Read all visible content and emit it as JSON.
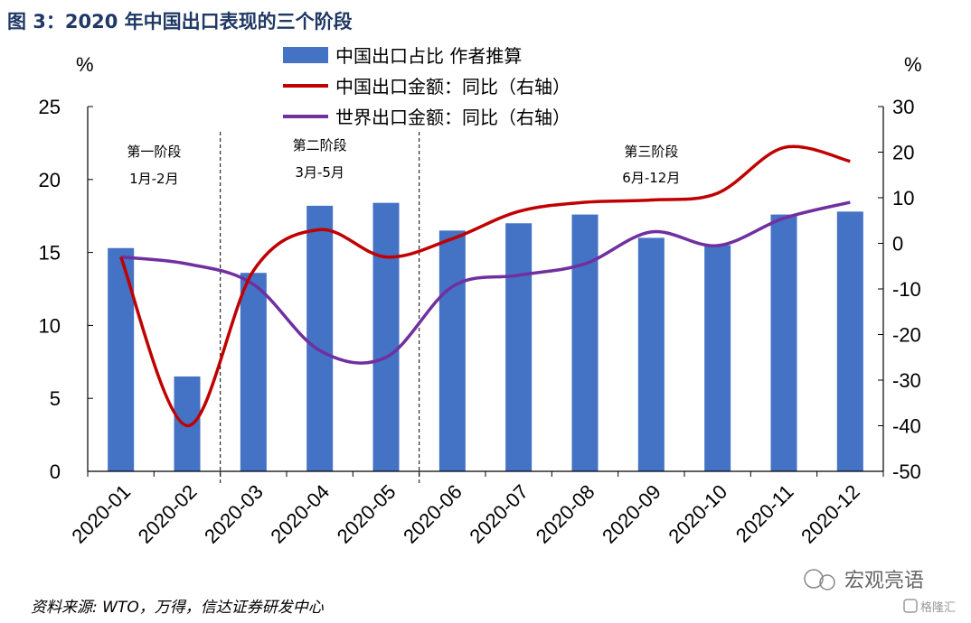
{
  "figure_title": "图 3：2020 年中国出口表现的三个阶段",
  "source_note": "资料来源: WTO，万得，信达证券研发中心",
  "watermark": {
    "account": "宏观亮语",
    "brand": "格隆汇"
  },
  "colors": {
    "bar": "#4472c4",
    "china_line": "#c00000",
    "world_line": "#7030a0",
    "title": "#1f3864"
  },
  "chart_data": {
    "type": "bar+line",
    "categories": [
      "2020-01",
      "2020-02",
      "2020-03",
      "2020-04",
      "2020-05",
      "2020-06",
      "2020-07",
      "2020-08",
      "2020-09",
      "2020-10",
      "2020-11",
      "2020-12"
    ],
    "left_axis": {
      "unit": "%",
      "ylim": [
        0,
        25
      ],
      "ticks": [
        0,
        5,
        10,
        15,
        20,
        25
      ]
    },
    "right_axis": {
      "unit": "%",
      "ylim": [
        -50,
        30
      ],
      "ticks": [
        -50,
        -40,
        -30,
        -20,
        -10,
        0,
        10,
        20,
        30
      ]
    },
    "series": [
      {
        "name": "中国出口占比 作者推算",
        "type": "bar",
        "axis": "left",
        "values": [
          15.3,
          6.5,
          13.6,
          18.2,
          18.4,
          16.5,
          17.0,
          17.6,
          16.0,
          15.5,
          17.6,
          17.8
        ]
      },
      {
        "name": "中国出口金额：同比（右轴）",
        "type": "line",
        "axis": "right",
        "values": [
          -3,
          -40,
          -6,
          3,
          -3,
          1,
          7,
          9,
          9.5,
          11,
          21,
          18
        ]
      },
      {
        "name": "世界出口金额：同比（右轴）",
        "type": "line",
        "axis": "right",
        "values": [
          -3,
          -4.5,
          -9,
          -23.5,
          -25,
          -9.5,
          -7,
          -4.5,
          2.5,
          -0.5,
          5.5,
          9
        ]
      }
    ],
    "stages": [
      {
        "name": "第一阶段",
        "period": "1月-2月"
      },
      {
        "name": "第二阶段",
        "period": "3月-5月"
      },
      {
        "name": "第三阶段",
        "period": "6月-12月"
      }
    ]
  }
}
